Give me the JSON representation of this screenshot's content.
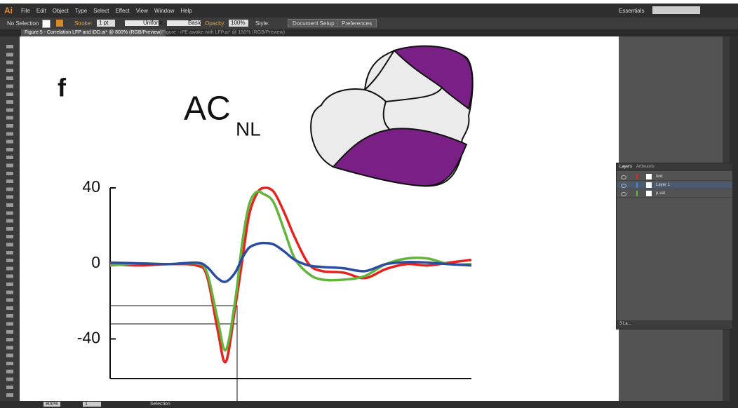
{
  "menu": {
    "logo": "Ai",
    "items": [
      "File",
      "Edit",
      "Object",
      "Type",
      "Select",
      "Effect",
      "View",
      "Window",
      "Help"
    ],
    "workspace": "Essentials"
  },
  "control_bar": {
    "selection": "No Selection",
    "stroke_label": "Stroke:",
    "stroke_weight": "1 pt",
    "profile": "Uniform",
    "brush": "Basic",
    "opacity_label": "Opacity:",
    "opacity": "100%",
    "style_label": "Style:",
    "document_setup": "Document Setup",
    "preferences": "Preferences"
  },
  "tabs": [
    "Figure 5 - Correlation LFP and iDD.ai* @ 800% (RGB/Preview)",
    "Figure - iPE awake with LFP.ai* @ 150% (RGB/Preview)"
  ],
  "artwork": {
    "panel_label": "f",
    "title": "AC",
    "title_sub": "NL",
    "chart": {
      "type": "line",
      "xlim": [
        0,
        100
      ],
      "ylim": [
        -61,
        40
      ],
      "yticks": [
        40,
        0,
        -40
      ],
      "x": [
        0,
        8.3,
        16.1,
        23.9,
        26.8,
        29.7,
        32,
        34.6,
        36.5,
        38.4,
        40.4,
        42.3,
        45.2,
        48.2,
        51.1,
        55,
        58.8,
        64.7,
        70.5,
        76.3,
        82.1,
        87.9,
        93.8,
        100
      ],
      "series": [
        {
          "color": "#e5231f",
          "values": [
            -0.4,
            -1.1,
            -0.4,
            -1.1,
            -6.7,
            -34.7,
            -52.2,
            -23.5,
            0.7,
            25,
            36.2,
            39.9,
            38.1,
            26.9,
            13.8,
            -0.4,
            -4.1,
            -4.9,
            -7.8,
            -3,
            -0.4,
            -1.1,
            0.4,
            1.9
          ]
        },
        {
          "color": "#62b43a",
          "values": [
            -1.1,
            0,
            -0.4,
            0,
            -4.9,
            -29.1,
            -45.9,
            -19.8,
            10.1,
            30.6,
            37.7,
            36.9,
            32.5,
            17.5,
            2.6,
            -5.6,
            -8.6,
            -8.6,
            -6.7,
            -0.4,
            2.6,
            2.6,
            -0.4,
            -0.4
          ]
        },
        {
          "color": "#2a4ca3",
          "values": [
            0.4,
            0,
            -0.4,
            0.4,
            -1.9,
            -7.8,
            -9.7,
            -4.9,
            2.6,
            8.2,
            10.1,
            10.8,
            10.1,
            6.3,
            1.9,
            -1.1,
            -1.9,
            -2.6,
            -4.1,
            -0.4,
            0.7,
            0.4,
            -0.4,
            -1.1
          ]
        }
      ]
    }
  },
  "layers_panel": {
    "tabs": [
      "Layers",
      "Artboards"
    ],
    "layers": [
      {
        "name": "text",
        "color": "#e5231f"
      },
      {
        "name": "Layer 1",
        "color": "#4a7fd6"
      },
      {
        "name": "p-val",
        "color": "#4fc23a"
      }
    ],
    "footer": "3 La..."
  },
  "status_bar": {
    "zoom": "800%",
    "artboard": "1",
    "tool": "Selection"
  }
}
